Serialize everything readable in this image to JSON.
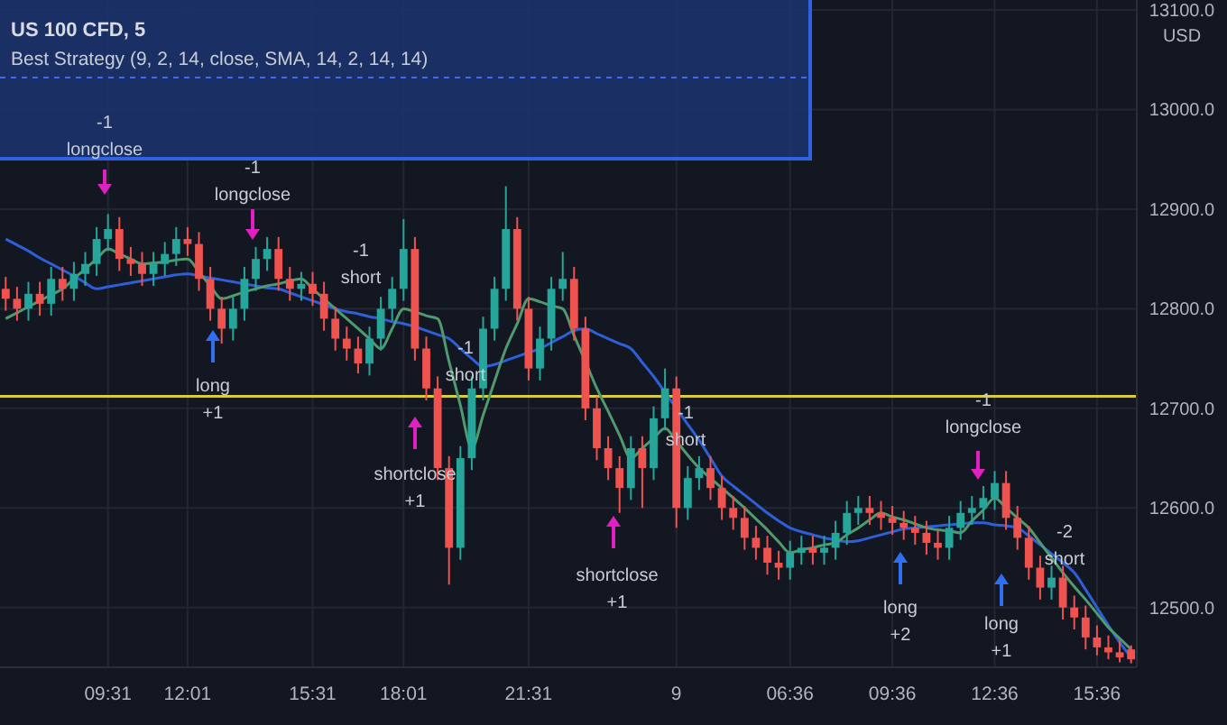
{
  "chart_data": {
    "type": "candlestick",
    "title": "US 100 CFD, 5",
    "subtitle": "Best Strategy (9, 2, 14, close, SMA, 14, 2, 14, 14)",
    "ylabel": "USD",
    "categories": [
      null,
      null,
      null,
      null,
      null,
      null,
      null,
      null,
      null,
      "09:31",
      null,
      null,
      null,
      null,
      null,
      null,
      "12:01",
      null,
      null,
      null,
      null,
      null,
      null,
      null,
      null,
      null,
      null,
      "15:31",
      null,
      null,
      null,
      null,
      null,
      null,
      null,
      "18:01",
      null,
      null,
      null,
      null,
      null,
      null,
      null,
      null,
      null,
      null,
      "21:31",
      null,
      null,
      null,
      null,
      null,
      null,
      null,
      null,
      null,
      null,
      null,
      null,
      "9",
      null,
      null,
      null,
      null,
      null,
      null,
      null,
      null,
      null,
      "06:36",
      null,
      null,
      null,
      null,
      null,
      null,
      null,
      null,
      "09:36",
      null,
      null,
      null,
      null,
      null,
      null,
      null,
      null,
      "12:36",
      null,
      null,
      null,
      null,
      null,
      null,
      null,
      null,
      "15:36",
      null,
      null,
      null
    ],
    "ohlc": [
      [
        12820,
        12832,
        12798,
        12810
      ],
      [
        12810,
        12822,
        12788,
        12800
      ],
      [
        12800,
        12827,
        12788,
        12815
      ],
      [
        12815,
        12827,
        12793,
        12805
      ],
      [
        12805,
        12842,
        12793,
        12830
      ],
      [
        12830,
        12842,
        12808,
        12820
      ],
      [
        12820,
        12847,
        12808,
        12835
      ],
      [
        12835,
        12857,
        12823,
        12845
      ],
      [
        12845,
        12882,
        12833,
        12870
      ],
      [
        12870,
        12895,
        12858,
        12880
      ],
      [
        12880,
        12892,
        12838,
        12850
      ],
      [
        12850,
        12862,
        12833,
        12845
      ],
      [
        12845,
        12857,
        12823,
        12835
      ],
      [
        12835,
        12857,
        12823,
        12845
      ],
      [
        12845,
        12867,
        12833,
        12855
      ],
      [
        12855,
        12882,
        12843,
        12870
      ],
      [
        12870,
        12882,
        12853,
        12865
      ],
      [
        12865,
        12877,
        12818,
        12830
      ],
      [
        12830,
        12842,
        12788,
        12800
      ],
      [
        12800,
        12812,
        12765,
        12780
      ],
      [
        12780,
        12812,
        12768,
        12800
      ],
      [
        12800,
        12842,
        12788,
        12830
      ],
      [
        12830,
        12862,
        12818,
        12850
      ],
      [
        12850,
        12872,
        12838,
        12860
      ],
      [
        12860,
        12872,
        12818,
        12830
      ],
      [
        12830,
        12842,
        12808,
        12820
      ],
      [
        12820,
        12837,
        12808,
        12825
      ],
      [
        12825,
        12837,
        12803,
        12815
      ],
      [
        12815,
        12827,
        12778,
        12790
      ],
      [
        12790,
        12802,
        12758,
        12770
      ],
      [
        12770,
        12782,
        12748,
        12760
      ],
      [
        12760,
        12772,
        12735,
        12745
      ],
      [
        12745,
        12782,
        12733,
        12770
      ],
      [
        12770,
        12812,
        12758,
        12800
      ],
      [
        12800,
        12832,
        12788,
        12820
      ],
      [
        12820,
        12890,
        12808,
        12860
      ],
      [
        12860,
        12872,
        12748,
        12760
      ],
      [
        12760,
        12772,
        12708,
        12720
      ],
      [
        12720,
        12732,
        12628,
        12640
      ],
      [
        12640,
        12652,
        12523,
        12560
      ],
      [
        12560,
        12662,
        12548,
        12650
      ],
      [
        12650,
        12732,
        12638,
        12720
      ],
      [
        12720,
        12792,
        12708,
        12780
      ],
      [
        12780,
        12832,
        12768,
        12820
      ],
      [
        12820,
        12923,
        12808,
        12880
      ],
      [
        12880,
        12892,
        12788,
        12800
      ],
      [
        12800,
        12812,
        12728,
        12740
      ],
      [
        12740,
        12782,
        12728,
        12770
      ],
      [
        12770,
        12832,
        12758,
        12820
      ],
      [
        12820,
        12857,
        12808,
        12830
      ],
      [
        12830,
        12842,
        12768,
        12780
      ],
      [
        12780,
        12792,
        12688,
        12700
      ],
      [
        12700,
        12712,
        12648,
        12660
      ],
      [
        12660,
        12672,
        12628,
        12640
      ],
      [
        12640,
        12652,
        12595,
        12620
      ],
      [
        12620,
        12672,
        12608,
        12660
      ],
      [
        12660,
        12672,
        12600,
        12640
      ],
      [
        12640,
        12702,
        12628,
        12690
      ],
      [
        12690,
        12740,
        12678,
        12720
      ],
      [
        12720,
        12732,
        12580,
        12600
      ],
      [
        12600,
        12642,
        12588,
        12630
      ],
      [
        12630,
        12652,
        12618,
        12640
      ],
      [
        12640,
        12652,
        12608,
        12620
      ],
      [
        12620,
        12632,
        12588,
        12600
      ],
      [
        12600,
        12612,
        12578,
        12590
      ],
      [
        12590,
        12602,
        12558,
        12570
      ],
      [
        12570,
        12582,
        12548,
        12560
      ],
      [
        12560,
        12572,
        12533,
        12545
      ],
      [
        12545,
        12557,
        12528,
        12540
      ],
      [
        12540,
        12567,
        12528,
        12555
      ],
      [
        12555,
        12572,
        12543,
        12560
      ],
      [
        12560,
        12572,
        12543,
        12555
      ],
      [
        12555,
        12572,
        12543,
        12560
      ],
      [
        12560,
        12587,
        12548,
        12575
      ],
      [
        12575,
        12607,
        12563,
        12595
      ],
      [
        12595,
        12612,
        12583,
        12600
      ],
      [
        12600,
        12612,
        12583,
        12595
      ],
      [
        12595,
        12607,
        12578,
        12590
      ],
      [
        12590,
        12602,
        12573,
        12585
      ],
      [
        12585,
        12597,
        12568,
        12580
      ],
      [
        12580,
        12592,
        12563,
        12575
      ],
      [
        12575,
        12587,
        12553,
        12565
      ],
      [
        12565,
        12577,
        12548,
        12560
      ],
      [
        12560,
        12592,
        12548,
        12580
      ],
      [
        12580,
        12607,
        12568,
        12595
      ],
      [
        12595,
        12612,
        12583,
        12600
      ],
      [
        12600,
        12622,
        12588,
        12610
      ],
      [
        12610,
        12637,
        12598,
        12625
      ],
      [
        12625,
        12637,
        12578,
        12590
      ],
      [
        12590,
        12602,
        12558,
        12570
      ],
      [
        12570,
        12582,
        12528,
        12540
      ],
      [
        12540,
        12552,
        12508,
        12520
      ],
      [
        12520,
        12542,
        12508,
        12530
      ],
      [
        12530,
        12542,
        12488,
        12500
      ],
      [
        12500,
        12512,
        12478,
        12490
      ],
      [
        12490,
        12502,
        12458,
        12470
      ],
      [
        12470,
        12482,
        12452,
        12460
      ],
      [
        12460,
        12472,
        12448,
        12455
      ],
      [
        12455,
        12467,
        12445,
        12450
      ],
      [
        12458,
        12462,
        12444,
        12448
      ]
    ],
    "series": [
      {
        "type": "line",
        "color": "#2f5fd8",
        "values": [
          12870,
          12864,
          12858,
          12851,
          12845,
          12839,
          12833,
          12826,
          12820,
          12822,
          12824,
          12826,
          12828,
          12830,
          12832,
          12834,
          12835,
          12833,
          12831,
          12829,
          12827,
          12825,
          12823,
          12821,
          12820,
          12816,
          12812,
          12808,
          12804,
          12800,
          12797,
          12795,
          12792,
          12790,
          12787,
          12785,
          12782,
          12778,
          12774,
          12770,
          12760,
          12750,
          12742,
          12744,
          12748,
          12752,
          12756,
          12760,
          12766,
          12772,
          12778,
          12780,
          12775,
          12770,
          12765,
          12760,
          12746,
          12732,
          12716,
          12700,
          12684,
          12668,
          12650,
          12632,
          12622,
          12613,
          12604,
          12595,
          12587,
          12580,
          12576,
          12573,
          12570,
          12568,
          12566,
          12567,
          12570,
          12573,
          12576,
          12579,
          12580,
          12581,
          12582,
          12583,
          12584,
          12585,
          12585,
          12583,
          12582,
          12580,
          12572,
          12563,
          12554,
          12545,
          12535,
          12518,
          12500,
          12482,
          12465,
          12450
        ]
      },
      {
        "type": "line",
        "color": "#4f9a6e",
        "values": [
          12790,
          12796,
          12802,
          12808,
          12814,
          12820,
          12830,
          12840,
          12850,
          12860,
          12855,
          12850,
          12845,
          12846,
          12847,
          12849,
          12850,
          12837,
          12823,
          12810,
          12813,
          12817,
          12820,
          12823,
          12825,
          12828,
          12830,
          12820,
          12810,
          12800,
          12790,
          12780,
          12770,
          12760,
          12780,
          12800,
          12797,
          12793,
          12790,
          12747,
          12703,
          12660,
          12693,
          12727,
          12760,
          12785,
          12810,
          12807,
          12803,
          12800,
          12773,
          12747,
          12720,
          12697,
          12673,
          12650,
          12660,
          12670,
          12680,
          12667,
          12653,
          12640,
          12630,
          12620,
          12610,
          12600,
          12589,
          12578,
          12566,
          12555,
          12558,
          12560,
          12563,
          12565,
          12573,
          12580,
          12588,
          12595,
          12591,
          12588,
          12584,
          12580,
          12578,
          12577,
          12575,
          12587,
          12598,
          12610,
          12600,
          12590,
          12580,
          12565,
          12550,
          12535,
          12521,
          12508,
          12494,
          12480,
          12469,
          12458
        ]
      }
    ],
    "ylim": [
      12440,
      13110
    ],
    "yticks": [
      {
        "value": 12500,
        "label": "12500.0"
      },
      {
        "value": 12600,
        "label": "12600.0"
      },
      {
        "value": 12700,
        "label": "12700.0"
      },
      {
        "value": 12800,
        "label": "12800.0"
      },
      {
        "value": 12900,
        "label": "12900.0"
      },
      {
        "value": 13000,
        "label": "13000.0"
      },
      {
        "value": 13100,
        "label": "13100.0"
      }
    ],
    "grid": true,
    "ref_lines": [
      {
        "axis": "y",
        "value": 12712,
        "color": "#d8cc3c"
      }
    ],
    "annotations": [
      "-1\nlongclose",
      "-1\nlongclose",
      "long\n+1",
      "-1\nshort",
      "shortclose\n+1",
      "-1\nshort",
      "shortclose\n+1",
      "-1\nshort",
      "long\n+2",
      "-1\nlongclose",
      "-2\nshort",
      "long\n+1"
    ]
  }
}
